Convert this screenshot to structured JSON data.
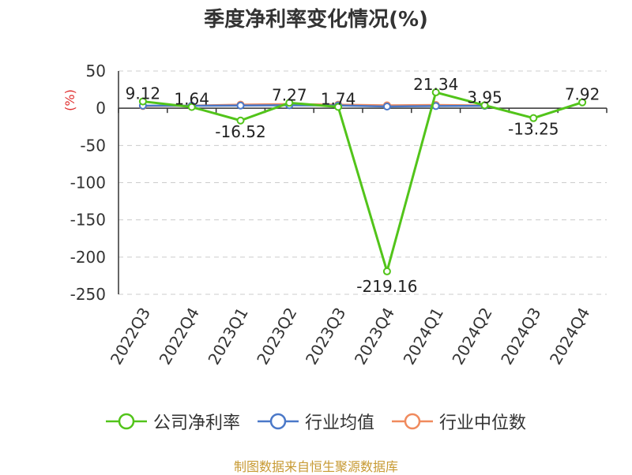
{
  "chart_data": {
    "type": "line",
    "title": "季度净利率变化情况(%)",
    "ylabel": "(%)",
    "xlabel": "",
    "categories": [
      "2022Q3",
      "2022Q4",
      "2023Q1",
      "2023Q2",
      "2023Q3",
      "2023Q4",
      "2024Q1",
      "2024Q2",
      "2024Q3",
      "2024Q4"
    ],
    "ylim": [
      -250,
      50
    ],
    "yticks": [
      50,
      0,
      -50,
      -100,
      -150,
      -200,
      -250
    ],
    "grid": true,
    "legend_position": "bottom",
    "series": [
      {
        "name": "公司净利率",
        "color": "#52c41a",
        "values": [
          9.12,
          1.64,
          -16.52,
          7.27,
          1.74,
          -219.16,
          21.34,
          3.95,
          -13.25,
          7.92
        ],
        "labels": [
          "9.12",
          "1.64",
          "-16.52",
          "7.27",
          "1.74",
          "-219.16",
          "21.34",
          "3.95",
          "-13.25",
          "7.92"
        ]
      },
      {
        "name": "行业均值",
        "color": "#4a78c8",
        "values": [
          3.5,
          3.3,
          3.6,
          4.0,
          3.7,
          2.3,
          3.0,
          3.2,
          null,
          null
        ]
      },
      {
        "name": "行业中位数",
        "color": "#f08a5d",
        "values": [
          3.0,
          3.5,
          4.8,
          5.6,
          4.8,
          3.9,
          4.4,
          3.8,
          null,
          null
        ]
      }
    ]
  },
  "source": "制图数据来自恒生聚源数据库"
}
